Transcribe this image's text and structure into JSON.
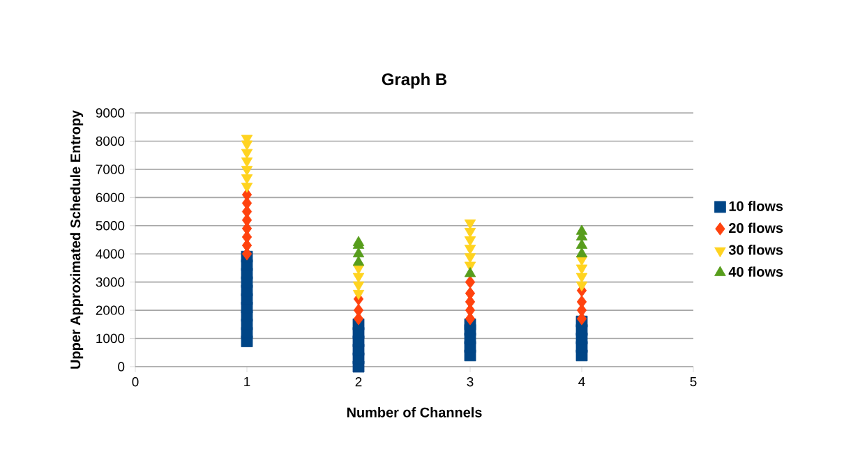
{
  "chart_data": {
    "type": "scatter",
    "title": "Graph B",
    "xlabel": "Number of Channels",
    "ylabel": "Upper Approximated Schedule Entropy",
    "xlim": [
      0,
      5
    ],
    "xticks": [
      0,
      1,
      2,
      3,
      4,
      5
    ],
    "ylim": [
      0,
      9000
    ],
    "yticks": [
      0,
      1000,
      2000,
      3000,
      4000,
      5000,
      6000,
      7000,
      8000,
      9000
    ],
    "grid": "y",
    "legend": "right",
    "series": [
      {
        "name": "10 flows",
        "color": "#004586",
        "marker": "square",
        "x": [
          1,
          1,
          1,
          1,
          1,
          1,
          1,
          1,
          1,
          1,
          1,
          2,
          2,
          2,
          2,
          2,
          2,
          3,
          3,
          3,
          3,
          3,
          4,
          4,
          4,
          4,
          4
        ],
        "values": [
          900,
          1200,
          1500,
          1800,
          2100,
          2400,
          2700,
          3000,
          3300,
          3600,
          3900,
          0,
          300,
          600,
          900,
          1200,
          1500,
          400,
          700,
          1000,
          1300,
          1500,
          400,
          700,
          1000,
          1300,
          1600
        ]
      },
      {
        "name": "20 flows",
        "color": "#ff420e",
        "marker": "diamond",
        "x": [
          1,
          1,
          1,
          1,
          1,
          1,
          1,
          1,
          2,
          2,
          2,
          3,
          3,
          3,
          3,
          3,
          4,
          4,
          4,
          4
        ],
        "values": [
          4000,
          4300,
          4600,
          4900,
          5200,
          5500,
          5800,
          6100,
          1700,
          2000,
          2400,
          1700,
          2000,
          2300,
          2600,
          3000,
          1700,
          2000,
          2300,
          2700
        ]
      },
      {
        "name": "30 flows",
        "color": "#ffd320",
        "marker": "triangle_down",
        "x": [
          1,
          1,
          1,
          1,
          1,
          1,
          1,
          2,
          2,
          2,
          2,
          3,
          3,
          3,
          3,
          3,
          3,
          4,
          4,
          4,
          4
        ],
        "values": [
          6400,
          6700,
          7000,
          7300,
          7600,
          7900,
          8100,
          2600,
          2900,
          3200,
          3500,
          3600,
          3900,
          4200,
          4500,
          4800,
          5100,
          2900,
          3200,
          3500,
          3800
        ]
      },
      {
        "name": "40 flows",
        "color": "#579d1c",
        "marker": "triangle",
        "x": [
          2,
          2,
          2,
          2,
          3,
          4,
          4,
          4,
          4
        ],
        "values": [
          3700,
          4000,
          4300,
          4400,
          3300,
          4000,
          4300,
          4600,
          4800
        ]
      }
    ]
  }
}
